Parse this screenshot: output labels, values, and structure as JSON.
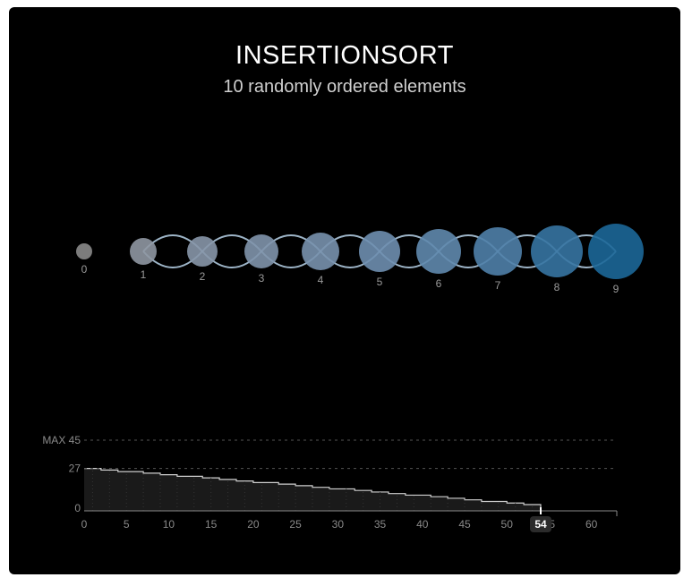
{
  "header": {
    "title": "INSERTIONSORT",
    "subtitle": "10 randomly ordered elements"
  },
  "elements": {
    "labels": [
      "0",
      "1",
      "2",
      "3",
      "4",
      "5",
      "6",
      "7",
      "8",
      "9"
    ],
    "colors": [
      "#8a8a8a",
      "#8f97a2",
      "#8796a8",
      "#7f93ab",
      "#7891ad",
      "#6e8eaf",
      "#5f88ad",
      "#4f80a9",
      "#3674a2",
      "#1c6798"
    ]
  },
  "chart_data": {
    "type": "area",
    "title": "",
    "xlabel": "",
    "ylabel": "",
    "xlim": [
      0,
      63
    ],
    "ylim": [
      0,
      45
    ],
    "x_ticks": [
      "0",
      "5",
      "10",
      "15",
      "20",
      "25",
      "30",
      "35",
      "40",
      "45",
      "50",
      "55",
      "60"
    ],
    "y_ticks": [
      "0",
      "27"
    ],
    "max_label": "MAX 45",
    "max_value": 45,
    "start_label": "27",
    "start_value": 27,
    "current_step": 54,
    "current_step_label": "54",
    "series": [
      {
        "x": [
          0,
          2,
          4,
          7,
          9,
          11,
          14,
          16,
          18,
          20,
          23,
          25,
          27,
          29,
          32,
          34,
          36,
          38,
          41,
          43,
          45,
          47,
          50,
          52,
          54
        ],
        "values": [
          27,
          26,
          25,
          24,
          23,
          22,
          21,
          20,
          19,
          18,
          17,
          16,
          15,
          14,
          13,
          12,
          11,
          10,
          9,
          8,
          7,
          6,
          5,
          4,
          0
        ]
      }
    ],
    "grid": true,
    "colors": {
      "fill": "#1a1a1a",
      "line": "#cfcfcf",
      "marker": "#ffffff"
    }
  }
}
